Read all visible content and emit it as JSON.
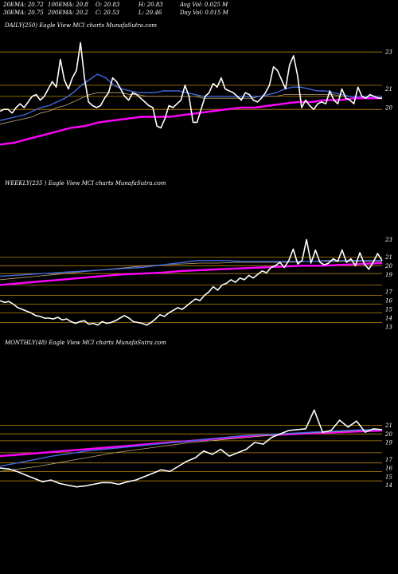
{
  "stats": {
    "row1": [
      "20EMA: 20.72",
      "100EMA: 20.8",
      "O: 20.83",
      "H: 20.83",
      "Avg Vol: 0.025 M"
    ],
    "row2": [
      "30EMA: 20.75",
      "200EMA: 20.2",
      "C: 20.53",
      "L: 20.46",
      "Day Vol: 0.015 M"
    ]
  },
  "colors": {
    "background": "#000000",
    "price_line": "#ffffff",
    "level_line": "#b8860b",
    "ema_short": "#4169e1",
    "ema_long": "#ff00ff",
    "ema_mid": "#c0a878"
  },
  "chart_data": [
    {
      "type": "line",
      "title": "DAILY(250) Eagle  View  MCI charts MunafaSutra.com",
      "y_ticks": [
        "23",
        "21",
        "20"
      ],
      "levels": [
        23,
        21.2,
        20.6,
        19.9
      ],
      "series": [
        {
          "values": [
            19.8,
            19.9,
            19.9,
            19.7,
            20.0,
            20.2,
            20.0,
            20.3,
            20.6,
            20.7,
            20.4,
            20.6,
            21.0,
            21.4,
            21.1,
            22.6,
            21.5,
            21.0,
            21.6,
            22.0,
            23.5,
            21.6,
            20.3,
            20.1,
            20.0,
            20.1,
            20.5,
            20.8,
            21.6,
            21.4,
            21.0,
            20.6,
            20.4,
            20.8,
            20.7,
            20.5,
            20.3,
            20.1,
            20.0,
            19.0,
            18.9,
            19.4,
            20.1,
            20.0,
            20.2,
            20.4,
            21.2,
            20.6,
            19.2,
            19.2,
            19.9,
            20.6,
            20.8,
            21.3,
            21.1,
            21.6,
            21.0,
            20.9,
            20.8,
            20.6,
            20.4,
            20.8,
            20.7,
            20.4,
            20.3,
            20.5,
            20.8,
            21.2,
            22.2,
            22.0,
            21.5,
            21.0,
            22.3,
            22.8,
            21.7,
            20.0,
            20.4,
            20.1,
            19.9,
            20.2,
            20.3,
            20.2,
            20.9,
            20.4,
            20.2,
            21.0,
            20.5,
            20.4,
            20.2,
            21.1,
            20.6,
            20.5,
            20.7,
            20.6,
            20.5,
            20.5
          ]
        },
        {
          "values": [
            19.3,
            19.4,
            19.5,
            19.6,
            19.8,
            20.0,
            20.1,
            20.3,
            20.5,
            20.8,
            21.2,
            21.5,
            21.8,
            21.6,
            21.2,
            21.0,
            20.9,
            20.8,
            20.8,
            20.8,
            20.9,
            20.9,
            20.9,
            20.8,
            20.7,
            20.6,
            20.6,
            20.6,
            20.6,
            20.6,
            20.6,
            20.6,
            20.6,
            20.7,
            20.8,
            21.0,
            21.1,
            21.1,
            21.0,
            20.9,
            20.9,
            20.8,
            20.7,
            20.6,
            20.6,
            20.6,
            20.6,
            20.6
          ]
        },
        {
          "values": [
            19.1,
            19.2,
            19.3,
            19.4,
            19.5,
            19.7,
            19.8,
            20.0,
            20.1,
            20.3,
            20.5,
            20.7,
            20.8,
            20.8,
            20.8,
            20.8,
            20.7,
            20.7,
            20.6,
            20.6,
            20.6,
            20.6,
            20.6,
            20.6,
            20.6,
            20.5,
            20.5,
            20.5,
            20.5,
            20.5,
            20.5,
            20.5,
            20.6,
            20.6,
            20.6,
            20.7,
            20.7,
            20.7,
            20.7,
            20.7,
            20.7,
            20.7,
            20.6,
            20.6,
            20.6,
            20.6,
            20.6,
            20.6
          ]
        },
        {
          "values": [
            18.0,
            18.1,
            18.3,
            18.5,
            18.7,
            18.9,
            19.0,
            19.2,
            19.3,
            19.4,
            19.5,
            19.5,
            19.5,
            19.6,
            19.7,
            19.8,
            19.9,
            20.0,
            20.0,
            20.1,
            20.2,
            20.3,
            20.3,
            20.4,
            20.4,
            20.5,
            20.5,
            20.5
          ]
        }
      ]
    },
    {
      "type": "line",
      "title": "WEEKLY(235                       ) Eagle  View  MCI charts MunafaSutra.com",
      "y_ticks": [
        "23",
        "21",
        "20",
        "19",
        "17",
        "16",
        "15",
        "14",
        "13"
      ],
      "levels": [
        21,
        20,
        19.1,
        17.8,
        16.6,
        15.6,
        14.6,
        13.5
      ],
      "series": [
        {
          "values": [
            16.0,
            15.8,
            15.9,
            15.6,
            15.2,
            15.0,
            14.8,
            14.6,
            14.3,
            14.2,
            14.0,
            14.0,
            13.9,
            14.1,
            13.8,
            13.9,
            13.6,
            13.4,
            13.6,
            13.7,
            13.3,
            13.4,
            13.2,
            13.6,
            13.4,
            13.5,
            13.7,
            14.0,
            14.3,
            14.0,
            13.6,
            13.5,
            13.4,
            13.2,
            13.5,
            13.9,
            14.4,
            14.2,
            14.6,
            14.9,
            15.2,
            15.0,
            15.4,
            15.8,
            16.2,
            16.0,
            16.6,
            17.0,
            17.6,
            17.2,
            17.8,
            18.0,
            18.4,
            18.1,
            18.6,
            18.4,
            18.9,
            18.6,
            19.0,
            19.4,
            19.2,
            19.8,
            20.0,
            20.4,
            19.8,
            20.6,
            21.9,
            20.2,
            20.6,
            23.0,
            20.3,
            21.8,
            20.4,
            20.1,
            20.3,
            20.8,
            20.5,
            21.8,
            20.4,
            20.8,
            20.0,
            21.5,
            20.2,
            19.6,
            20.4,
            21.4,
            20.6
          ]
        },
        {
          "values": [
            18.8,
            18.9,
            19.0,
            19.1,
            19.2,
            19.3,
            19.4,
            19.5,
            19.6,
            19.7,
            19.8,
            20.0,
            20.2,
            20.4,
            20.6,
            20.6,
            20.6,
            20.5,
            20.5,
            20.5,
            20.5,
            20.5,
            20.5,
            20.6,
            20.6,
            20.6,
            20.6,
            20.6
          ]
        },
        {
          "values": [
            18.4,
            18.6,
            18.8,
            19.0,
            19.2,
            19.4,
            19.6,
            19.8,
            20.0,
            20.1,
            20.2,
            20.3,
            20.3,
            20.4,
            20.4,
            20.4,
            20.4,
            20.5,
            20.5,
            20.5,
            20.5,
            20.5
          ]
        },
        {
          "values": [
            17.8,
            18.0,
            18.2,
            18.4,
            18.6,
            18.8,
            19.0,
            19.1,
            19.2,
            19.4,
            19.5,
            19.6,
            19.7,
            19.8,
            19.9,
            20.0,
            20.0,
            20.1,
            20.2,
            20.3
          ]
        }
      ]
    },
    {
      "type": "line",
      "title": "MONTHLY(48) Eagle  View  MCI charts MunafaSutra.com",
      "y_ticks": [
        "21",
        "20",
        "19",
        "17",
        "16",
        "15",
        "14"
      ],
      "levels": [
        21,
        20,
        19.2,
        17.8,
        16.6,
        15.6,
        14.5
      ],
      "series": [
        {
          "values": [
            16.0,
            15.9,
            15.6,
            15.2,
            14.8,
            14.4,
            14.6,
            14.2,
            14.0,
            13.8,
            13.9,
            14.1,
            14.3,
            14.3,
            14.1,
            14.4,
            14.6,
            15.0,
            15.4,
            15.8,
            15.6,
            16.2,
            16.8,
            17.2,
            18.0,
            17.6,
            18.2,
            17.4,
            17.8,
            18.2,
            19.0,
            18.8,
            19.6,
            20.0,
            20.4,
            20.5,
            20.6,
            22.8,
            20.2,
            20.4,
            21.6,
            20.8,
            21.5,
            20.2,
            20.6,
            20.5
          ]
        },
        {
          "values": [
            16.2,
            16.6,
            17.0,
            17.4,
            17.7,
            18.0,
            18.2,
            18.4,
            18.6,
            18.8,
            19.0,
            19.2,
            19.4,
            19.6,
            19.8,
            19.9,
            20.0,
            20.1,
            20.2,
            20.3,
            20.4,
            20.5,
            20.5
          ]
        },
        {
          "values": [
            15.6,
            15.9,
            16.2,
            16.6,
            17.0,
            17.4,
            17.8,
            18.1,
            18.4,
            18.7,
            19.0,
            19.2,
            19.4,
            19.6,
            19.8,
            20.0,
            20.1,
            20.2,
            20.3,
            20.4,
            20.5
          ]
        },
        {
          "values": [
            17.4,
            17.6,
            17.8,
            18.0,
            18.2,
            18.4,
            18.6,
            18.8,
            19.0,
            19.2,
            19.4,
            19.6,
            19.8,
            19.9,
            20.0,
            20.1,
            20.2,
            20.3,
            20.4
          ]
        }
      ]
    }
  ]
}
